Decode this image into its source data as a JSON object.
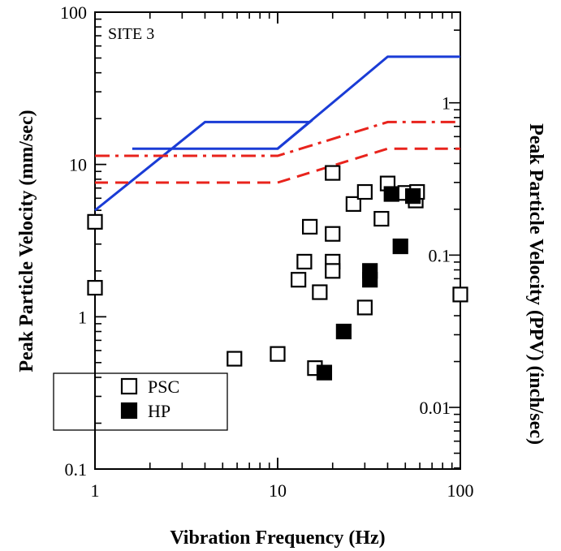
{
  "chart_data": {
    "type": "scatter",
    "annotation": "SITE 3",
    "xlabel": "Vibration Frequency (Hz)",
    "ylabel": "Peak Particle Velocity (mm/sec)",
    "y2label": "Peak Particle Velocity (PPV) (inch/sec)",
    "x_scale": "log",
    "y_scale": "log",
    "xlim": [
      1,
      100
    ],
    "ylim": [
      0.1,
      100
    ],
    "y2lim": [
      0.003937,
      3.937
    ],
    "x_tick_labels": [
      "1",
      "10",
      "100"
    ],
    "y_tick_labels": [
      "0.1",
      "1",
      "10",
      "100"
    ],
    "y2_tick_labels": [
      "0.01",
      "0.1",
      "1"
    ],
    "grid": false,
    "legend_position": "bottom-left",
    "legend": {
      "psc_label": "PSC",
      "hp_label": "HP"
    },
    "limit_lines": [
      {
        "style": "solid",
        "color": "#1a3cd6",
        "points": [
          [
            1,
            5.0
          ],
          [
            4,
            19
          ],
          [
            15,
            19
          ],
          [
            10,
            12.7
          ],
          [
            1.6,
            12.7
          ]
        ],
        "secondary_points": [
          [
            10,
            12.7
          ],
          [
            40,
            51
          ],
          [
            100,
            51
          ]
        ]
      },
      {
        "style": "dashdot",
        "color": "#e8231c",
        "points": [
          [
            1,
            11.4
          ],
          [
            10,
            11.4
          ],
          [
            40,
            19
          ],
          [
            100,
            19
          ]
        ]
      },
      {
        "style": "dashed",
        "color": "#e8231c",
        "points": [
          [
            1,
            7.6
          ],
          [
            10,
            7.6
          ],
          [
            40,
            12.7
          ],
          [
            100,
            12.7
          ]
        ]
      }
    ],
    "series": [
      {
        "name": "PSC",
        "marker": "open-square",
        "points": [
          [
            1,
            4.2
          ],
          [
            1,
            1.55
          ],
          [
            5.8,
            0.53
          ],
          [
            10,
            0.57
          ],
          [
            13,
            1.75
          ],
          [
            14,
            2.3
          ],
          [
            15,
            3.9
          ],
          [
            16,
            0.46
          ],
          [
            17,
            1.45
          ],
          [
            20,
            8.8
          ],
          [
            20,
            3.5
          ],
          [
            20,
            2.3
          ],
          [
            20,
            2.0
          ],
          [
            26,
            5.5
          ],
          [
            30,
            6.6
          ],
          [
            30,
            1.15
          ],
          [
            37,
            4.4
          ],
          [
            40,
            7.5
          ],
          [
            50,
            6.5
          ],
          [
            57,
            5.8
          ],
          [
            58,
            6.6
          ],
          [
            100,
            1.4
          ]
        ]
      },
      {
        "name": "HP",
        "marker": "filled-square",
        "points": [
          [
            18,
            0.43
          ],
          [
            23,
            0.8
          ],
          [
            32,
            2.0
          ],
          [
            32,
            1.75
          ],
          [
            42,
            6.4
          ],
          [
            47,
            2.9
          ],
          [
            55,
            6.2
          ]
        ]
      }
    ]
  }
}
